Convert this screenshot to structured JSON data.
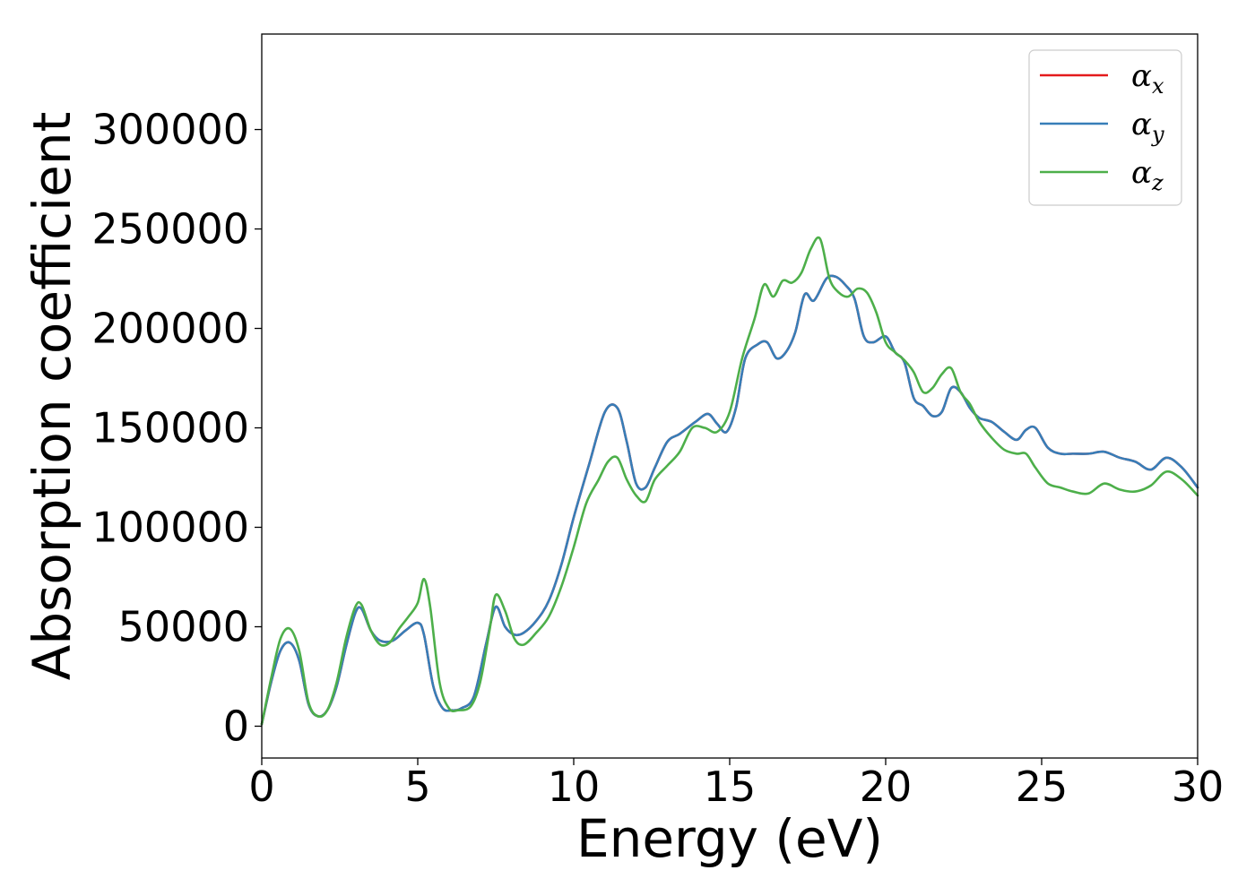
{
  "chart_data": {
    "type": "line",
    "title": "",
    "xlabel": "Energy (eV)",
    "ylabel": "Absorption coefficient",
    "xlim": [
      0,
      30
    ],
    "ylim": [
      -16000,
      348000
    ],
    "xticks": [
      "0",
      "5",
      "10",
      "15",
      "20",
      "25",
      "30"
    ],
    "yticks": [
      "0",
      "50000",
      "100000",
      "150000",
      "200000",
      "250000",
      "300000"
    ],
    "grid": false,
    "legend": "top-right",
    "legend_entries": [
      {
        "symbol": "α",
        "subscript": "x",
        "color": "#e41a1c"
      },
      {
        "symbol": "α",
        "subscript": "y",
        "color": "#377eb8"
      },
      {
        "symbol": "α",
        "subscript": "z",
        "color": "#4daf4a"
      }
    ],
    "series": [
      {
        "color": "#e41a1c",
        "x": [
          0,
          0.3,
          0.6,
          0.9,
          1.2,
          1.5,
          1.8,
          2.1,
          2.4,
          2.7,
          3.0,
          3.2,
          3.5,
          3.8,
          4.2,
          4.6,
          5.0,
          5.2,
          5.5,
          5.8,
          6.1,
          6.4,
          6.8,
          7.2,
          7.5,
          7.8,
          8.1,
          8.4,
          8.8,
          9.2,
          9.6,
          10.0,
          10.5,
          11.0,
          11.4,
          11.7,
          12.0,
          12.3,
          12.6,
          13.0,
          13.4,
          13.9,
          14.3,
          14.6,
          14.9,
          15.2,
          15.5,
          15.9,
          16.2,
          16.5,
          16.8,
          17.1,
          17.4,
          17.7,
          18.1,
          18.4,
          18.7,
          19.0,
          19.3,
          19.6,
          20.0,
          20.3,
          20.6,
          20.9,
          21.2,
          21.5,
          21.8,
          22.1,
          22.4,
          22.7,
          23.0,
          23.4,
          23.8,
          24.2,
          24.5,
          24.8,
          25.2,
          25.6,
          26.0,
          26.5,
          27.0,
          27.5,
          28.0,
          28.5,
          29.0,
          29.5,
          30.0
        ],
        "y": [
          1000,
          22000,
          38000,
          42000,
          33000,
          11000,
          5000,
          8000,
          20000,
          40000,
          57000,
          59000,
          48000,
          43000,
          43000,
          48000,
          52000,
          46000,
          20000,
          9000,
          8000,
          9000,
          15000,
          42000,
          60000,
          50000,
          46000,
          47000,
          53000,
          63000,
          81000,
          105000,
          132000,
          158000,
          160000,
          143000,
          122000,
          120000,
          130000,
          143000,
          147000,
          153000,
          157000,
          152000,
          148000,
          160000,
          185000,
          192000,
          193000,
          185000,
          188000,
          198000,
          217000,
          214000,
          225000,
          226000,
          222000,
          215000,
          196000,
          193000,
          196000,
          188000,
          183000,
          165000,
          161000,
          156000,
          158000,
          170000,
          168000,
          160000,
          155000,
          153000,
          148000,
          144000,
          149000,
          150000,
          140000,
          137000,
          137000,
          137000,
          138000,
          135000,
          133000,
          129000,
          135000,
          130000,
          120000
        ]
      },
      {
        "color": "#377eb8",
        "x": [
          0,
          0.3,
          0.6,
          0.9,
          1.2,
          1.5,
          1.8,
          2.1,
          2.4,
          2.7,
          3.0,
          3.2,
          3.5,
          3.8,
          4.2,
          4.6,
          5.0,
          5.2,
          5.5,
          5.8,
          6.1,
          6.4,
          6.8,
          7.2,
          7.5,
          7.8,
          8.1,
          8.4,
          8.8,
          9.2,
          9.6,
          10.0,
          10.5,
          11.0,
          11.4,
          11.7,
          12.0,
          12.3,
          12.6,
          13.0,
          13.4,
          13.9,
          14.3,
          14.6,
          14.9,
          15.2,
          15.5,
          15.9,
          16.2,
          16.5,
          16.8,
          17.1,
          17.4,
          17.7,
          18.1,
          18.4,
          18.7,
          19.0,
          19.3,
          19.6,
          20.0,
          20.3,
          20.6,
          20.9,
          21.2,
          21.5,
          21.8,
          22.1,
          22.4,
          22.7,
          23.0,
          23.4,
          23.8,
          24.2,
          24.5,
          24.8,
          25.2,
          25.6,
          26.0,
          26.5,
          27.0,
          27.5,
          28.0,
          28.5,
          29.0,
          29.5,
          30.0
        ],
        "y": [
          1000,
          22000,
          38000,
          42000,
          33000,
          11000,
          5000,
          8000,
          20000,
          40000,
          57000,
          59000,
          48000,
          43000,
          43000,
          48000,
          52000,
          46000,
          20000,
          9000,
          8000,
          9000,
          15000,
          42000,
          60000,
          50000,
          46000,
          47000,
          53000,
          63000,
          81000,
          105000,
          132000,
          158000,
          160000,
          143000,
          122000,
          120000,
          130000,
          143000,
          147000,
          153000,
          157000,
          152000,
          148000,
          160000,
          185000,
          192000,
          193000,
          185000,
          188000,
          198000,
          217000,
          214000,
          225000,
          226000,
          222000,
          215000,
          196000,
          193000,
          196000,
          188000,
          183000,
          165000,
          161000,
          156000,
          158000,
          170000,
          168000,
          160000,
          155000,
          153000,
          148000,
          144000,
          149000,
          150000,
          140000,
          137000,
          137000,
          137000,
          138000,
          135000,
          133000,
          129000,
          135000,
          130000,
          120000
        ]
      },
      {
        "color": "#4daf4a",
        "x": [
          0,
          0.3,
          0.6,
          0.9,
          1.2,
          1.5,
          1.8,
          2.1,
          2.4,
          2.7,
          3.0,
          3.2,
          3.5,
          3.8,
          4.1,
          4.4,
          4.7,
          5.0,
          5.2,
          5.4,
          5.7,
          6.0,
          6.3,
          6.7,
          7.0,
          7.3,
          7.5,
          7.8,
          8.1,
          8.4,
          8.8,
          9.2,
          9.6,
          10.0,
          10.4,
          10.8,
          11.1,
          11.4,
          11.7,
          12.0,
          12.3,
          12.6,
          13.0,
          13.4,
          13.8,
          14.2,
          14.6,
          15.0,
          15.4,
          15.8,
          16.1,
          16.4,
          16.7,
          17.0,
          17.3,
          17.6,
          17.9,
          18.2,
          18.5,
          18.8,
          19.1,
          19.4,
          19.7,
          20.0,
          20.3,
          20.6,
          20.9,
          21.2,
          21.5,
          21.8,
          22.1,
          22.4,
          22.7,
          23.0,
          23.4,
          23.8,
          24.2,
          24.5,
          24.8,
          25.2,
          25.6,
          26.0,
          26.5,
          27.0,
          27.5,
          28.0,
          28.5,
          29.0,
          29.5,
          30.0
        ],
        "y": [
          1000,
          24000,
          44000,
          49000,
          38000,
          12000,
          5000,
          8000,
          22000,
          44000,
          60000,
          61000,
          48000,
          41000,
          42000,
          49000,
          55000,
          62000,
          74000,
          60000,
          22000,
          9000,
          8000,
          10000,
          22000,
          48000,
          66000,
          58000,
          44000,
          41000,
          47000,
          55000,
          70000,
          90000,
          112000,
          124000,
          133000,
          135000,
          124000,
          116000,
          113000,
          124000,
          131000,
          138000,
          150000,
          150000,
          148000,
          158000,
          185000,
          205000,
          222000,
          216000,
          224000,
          223000,
          228000,
          240000,
          245000,
          225000,
          218000,
          216000,
          220000,
          218000,
          208000,
          193000,
          188000,
          184000,
          178000,
          168000,
          170000,
          177000,
          180000,
          168000,
          162000,
          153000,
          145000,
          139000,
          137000,
          137000,
          130000,
          122000,
          120000,
          118000,
          117000,
          122000,
          119000,
          118000,
          121000,
          128000,
          124000,
          116000
        ]
      }
    ]
  }
}
